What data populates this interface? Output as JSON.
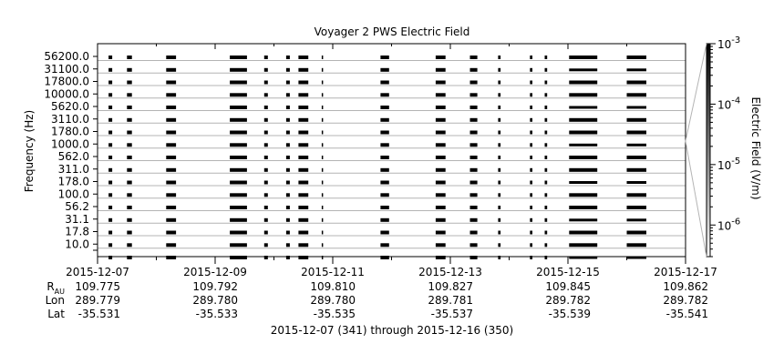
{
  "chart_data": {
    "type": "heatmap",
    "title": "Voyager 2 PWS Electric Field",
    "ylabel": "Frequency (Hz)",
    "colorbar_label": "Electric Field (V/m)",
    "colorbar_scale": "log",
    "colorbar_range": [
      3e-07,
      0.001
    ],
    "colorbar_ticks": [
      {
        "base": "10",
        "exp": "-3",
        "value": 0.001
      },
      {
        "base": "10",
        "exp": "-4",
        "value": 0.0001
      },
      {
        "base": "10",
        "exp": "-5",
        "value": 1e-05
      },
      {
        "base": "10",
        "exp": "-6",
        "value": 1e-06
      }
    ],
    "colormap": [
      "#ffffff",
      "#000000"
    ],
    "channels_hz": [
      "56200.0",
      "31100.0",
      "17800.0",
      "10000.0",
      "5620.0",
      "3110.0",
      "1780.0",
      "1000.0",
      "562.0",
      "311.0",
      "178.0",
      "100.0",
      "56.2",
      "31.1",
      "17.8",
      "10.0"
    ],
    "x_range": [
      "2015-12-07",
      "2015-12-17"
    ],
    "x_ticks": [
      "2015-12-07",
      "2015-12-09",
      "2015-12-11",
      "2015-12-13",
      "2015-12-15",
      "2015-12-17"
    ],
    "observation_intervals": [
      {
        "start": "2015-12-07 04:30",
        "end": "2015-12-07 06:00"
      },
      {
        "start": "2015-12-07 12:00",
        "end": "2015-12-07 14:00"
      },
      {
        "start": "2015-12-08 04:00",
        "end": "2015-12-08 08:00"
      },
      {
        "start": "2015-12-09 06:00",
        "end": "2015-12-09 13:00"
      },
      {
        "start": "2015-12-09 20:00",
        "end": "2015-12-09 21:30"
      },
      {
        "start": "2015-12-10 05:00",
        "end": "2015-12-10 06:30"
      },
      {
        "start": "2015-12-10 10:00",
        "end": "2015-12-10 14:00"
      },
      {
        "start": "2015-12-10 19:30",
        "end": "2015-12-10 20:00"
      },
      {
        "start": "2015-12-11 19:30",
        "end": "2015-12-11 23:00"
      },
      {
        "start": "2015-12-12 18:00",
        "end": "2015-12-12 22:00"
      },
      {
        "start": "2015-12-13 08:00",
        "end": "2015-12-13 11:00"
      },
      {
        "start": "2015-12-13 19:30",
        "end": "2015-12-13 20:30"
      },
      {
        "start": "2015-12-14 08:30",
        "end": "2015-12-14 09:30"
      },
      {
        "start": "2015-12-14 14:30",
        "end": "2015-12-14 15:30"
      },
      {
        "start": "2015-12-15 00:30",
        "end": "2015-12-15 12:00"
      },
      {
        "start": "2015-12-16 00:00",
        "end": "2015-12-16 08:00"
      }
    ],
    "ephemeris": {
      "rows": [
        {
          "label": "R",
          "sub": "AU",
          "values": [
            "109.775",
            "109.792",
            "109.810",
            "109.827",
            "109.845",
            "109.862"
          ]
        },
        {
          "label": "Lon",
          "sub": "",
          "values": [
            "289.779",
            "289.780",
            "289.780",
            "289.781",
            "289.782",
            "289.782"
          ]
        },
        {
          "label": "Lat",
          "sub": "",
          "values": [
            "-35.531",
            "-35.533",
            "-35.535",
            "-35.537",
            "-35.539",
            "-35.541"
          ]
        }
      ]
    },
    "date_range_label": "2015-12-07 (341) through 2015-12-16 (350)",
    "grid": "horizontal",
    "legend": "colorbar-right"
  }
}
